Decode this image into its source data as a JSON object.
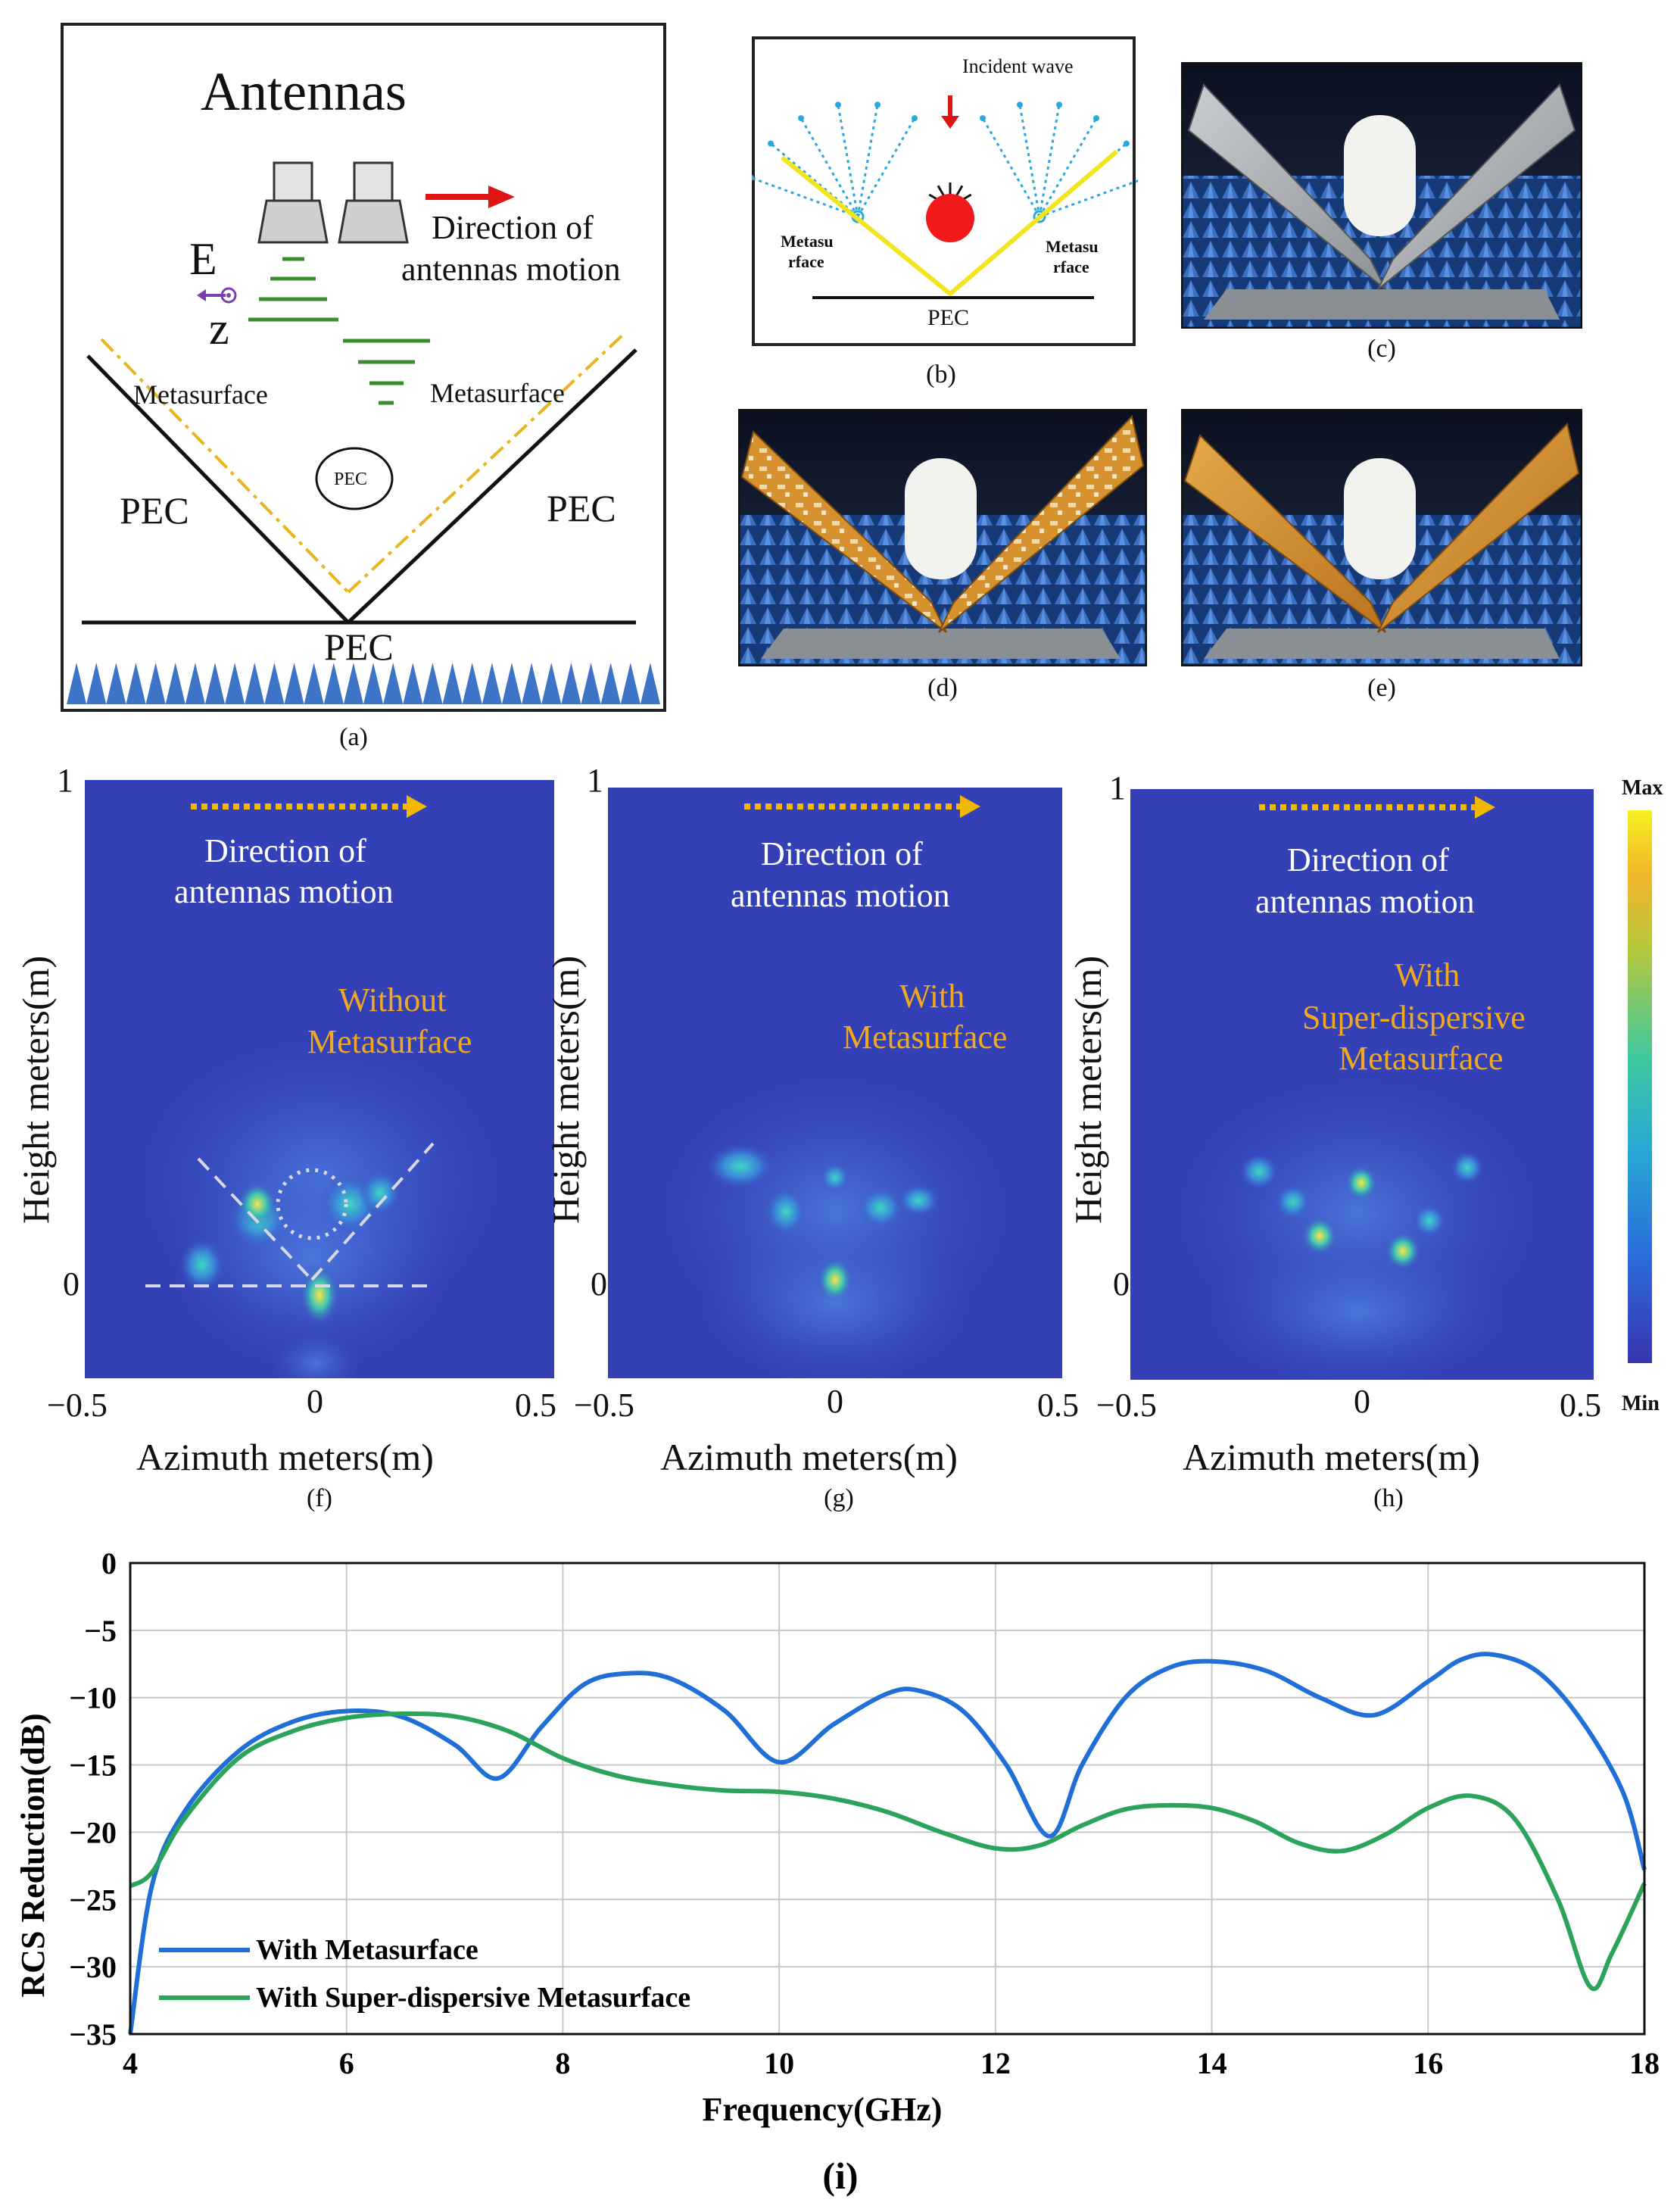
{
  "panel_a": {
    "title": "Antennas",
    "direction_line1": "Direction of",
    "direction_line2": "antennas motion",
    "e_label": "E",
    "z_label": "z",
    "metasurface_left": "Metasurface",
    "metasurface_right": "Metasurface",
    "pec_left": "PEC",
    "pec_right": "PEC",
    "pec_center": "PEC",
    "pec_bottom": "PEC",
    "caption": "(a)"
  },
  "panel_b": {
    "incident": "Incident wave",
    "meta_left_1": "Metasu",
    "meta_left_2": "rface",
    "meta_right_1": "Metasu",
    "meta_right_2": "rface",
    "pec": "PEC",
    "caption": "(b)"
  },
  "photos": {
    "caption_c": "(c)",
    "caption_d": "(d)",
    "caption_e": "(e)"
  },
  "sar_images": {
    "panels": [
      {
        "caption": "(f)",
        "dir_line1": "Direction of",
        "dir_line2": "antennas motion",
        "label_line1": "Without",
        "label_line2": "Metasurface",
        "label_line3": ""
      },
      {
        "caption": "(g)",
        "dir_line1": "Direction of",
        "dir_line2": "antennas motion",
        "label_line1": "With",
        "label_line2": "Metasurface",
        "label_line3": ""
      },
      {
        "caption": "(h)",
        "dir_line1": "Direction of",
        "dir_line2": "antennas motion",
        "label_line1": "With",
        "label_line2": "Super-dispersive",
        "label_line3": "Metasurface"
      }
    ],
    "ylabel": "Height meters(m)",
    "xlabel": "Azimuth meters(m)",
    "y_top": "1",
    "y_zero": "0",
    "x_left": "−0.5",
    "x_mid": "0",
    "x_right": "0.5",
    "colorbar_max": "Max",
    "colorbar_min": "Min"
  },
  "chart_data": {
    "type": "line",
    "title": "",
    "caption": "(i)",
    "xlabel": "Frequency(GHz)",
    "ylabel": "RCS Reduction(dB)",
    "xlim": [
      4,
      18
    ],
    "ylim": [
      -35,
      0
    ],
    "xticks": [
      "4",
      "6",
      "8",
      "10",
      "12",
      "14",
      "16",
      "18"
    ],
    "yticks": [
      "0",
      "−5",
      "−10",
      "−15",
      "−20",
      "−25",
      "−30",
      "−35"
    ],
    "grid": true,
    "legend_position": "bottom-left",
    "series": [
      {
        "name": "With Metasurface",
        "color": "#1f6fd6",
        "x": [
          4,
          4.2,
          4.5,
          5,
          5.5,
          6,
          6.5,
          7,
          7.4,
          7.8,
          8.2,
          8.6,
          9,
          9.5,
          10,
          10.5,
          11,
          11.3,
          11.7,
          12.1,
          12.5,
          12.8,
          13.2,
          13.6,
          14,
          14.5,
          15,
          15.5,
          16,
          16.3,
          16.6,
          17,
          17.4,
          17.8,
          18
        ],
        "y": [
          -35,
          -24,
          -18.5,
          -14,
          -11.8,
          -11,
          -11.4,
          -13.5,
          -16,
          -12.2,
          -9,
          -8.2,
          -8.6,
          -11,
          -14.8,
          -12,
          -9.7,
          -9.5,
          -11,
          -15,
          -20.3,
          -15,
          -10,
          -7.8,
          -7.3,
          -8,
          -10,
          -11.3,
          -8.8,
          -7.2,
          -6.8,
          -8,
          -11.5,
          -17,
          -22.8
        ]
      },
      {
        "name": "With Super-dispersive Metasurface",
        "color": "#2ba35a",
        "x": [
          4,
          4.2,
          4.5,
          5,
          5.5,
          6,
          6.5,
          7,
          7.5,
          8,
          8.5,
          9,
          9.5,
          10,
          10.5,
          11,
          11.5,
          12,
          12.4,
          12.8,
          13.2,
          13.6,
          14,
          14.4,
          14.8,
          15.2,
          15.6,
          16,
          16.4,
          16.8,
          17.2,
          17.5,
          17.7,
          18
        ],
        "y": [
          -24,
          -23,
          -19,
          -14.5,
          -12.5,
          -11.5,
          -11.2,
          -11.4,
          -12.5,
          -14.5,
          -15.8,
          -16.5,
          -16.9,
          -17,
          -17.5,
          -18.5,
          -20,
          -21.2,
          -21,
          -19.5,
          -18.3,
          -18,
          -18.2,
          -19.2,
          -20.8,
          -21.4,
          -20.2,
          -18.2,
          -17.3,
          -19,
          -25,
          -31.5,
          -29,
          -23.8
        ]
      }
    ]
  }
}
